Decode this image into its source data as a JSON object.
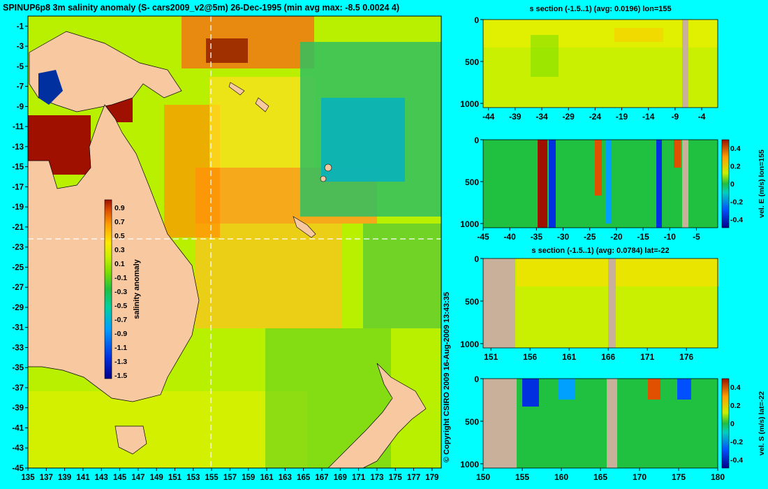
{
  "map": {
    "title": "SPINUP6p8 3m salinity anomaly (S- cars2009_v2@5m) 26-Dec-1995 (min avg max: -8.5 0.0024 4)",
    "copyright": "© Copyright CSIRO 2009  16-Aug-2009 13:43:35",
    "colorbar_label": "salinity anomaly",
    "colorbar_ticks": [
      "0.9",
      "0.7",
      "0.5",
      "0.3",
      "0.1",
      "-0.1",
      "-0.3",
      "-0.5",
      "-0.7",
      "-0.9",
      "-1.1",
      "-1.3",
      "-1.5"
    ]
  },
  "colors": {
    "background": "#00ffff",
    "land": "#f8c8a0",
    "section_land": "#c8b09a",
    "scale": [
      "#00008a",
      "#0030e0",
      "#00a0ff",
      "#00d0a0",
      "#20c040",
      "#80e000",
      "#c8f000",
      "#ffe800",
      "#ffa000",
      "#e05000",
      "#a01000"
    ]
  },
  "chart_data": [
    {
      "type": "heatmap",
      "title": "SPINUP6p8 3m salinity anomaly (S- cars2009_v2@5m) 26-Dec-1995 (min avg max: -8.5 0.0024 4)",
      "x_ticks": [
        135,
        137,
        139,
        141,
        143,
        145,
        147,
        149,
        151,
        153,
        155,
        157,
        159,
        161,
        163,
        165,
        167,
        169,
        171,
        173,
        175,
        177,
        179
      ],
      "y_ticks": [
        -1,
        -3,
        -5,
        -7,
        -9,
        -11,
        -13,
        -15,
        -17,
        -19,
        -21,
        -23,
        -25,
        -27,
        -29,
        -31,
        -33,
        -35,
        -37,
        -39,
        -41,
        -43,
        -45
      ],
      "xlim": [
        135,
        180
      ],
      "ylim": [
        -45,
        0
      ],
      "colorbar": {
        "label": "salinity anomaly",
        "range": [
          -1.5,
          0.9
        ]
      },
      "crosshair": {
        "lon": 155,
        "lat": -22
      }
    },
    {
      "type": "heatmap",
      "title": "s section (-1.5..1) (avg: 0.0196) lon=155",
      "x_ticks": [
        -44,
        -39,
        -34,
        -29,
        -24,
        -19,
        -14,
        -9,
        -4
      ],
      "y_ticks": [
        0,
        500,
        1000
      ],
      "xlim": [
        -45,
        -1
      ],
      "ylim": [
        1050,
        0
      ]
    },
    {
      "type": "heatmap",
      "title": "",
      "x_ticks": [
        -45,
        -40,
        -35,
        -30,
        -25,
        -20,
        -15,
        -10,
        -5
      ],
      "y_ticks": [
        0,
        500,
        1000
      ],
      "xlim": [
        -45,
        -1
      ],
      "ylim": [
        1050,
        0
      ],
      "colorbar": {
        "label": "vel. E (m/s) lon=155",
        "ticks": [
          "0.4",
          "0.2",
          "0",
          "-0.2",
          "-0.4"
        ]
      }
    },
    {
      "type": "heatmap",
      "title": "s section (-1.5..1) (avg: 0.0784) lat=-22",
      "x_ticks": [
        151,
        156,
        161,
        166,
        171,
        176
      ],
      "y_ticks": [
        0,
        500,
        1000
      ],
      "xlim": [
        150,
        180
      ],
      "ylim": [
        1050,
        0
      ]
    },
    {
      "type": "heatmap",
      "title": "",
      "x_ticks": [
        150,
        155,
        160,
        165,
        170,
        175,
        180
      ],
      "y_ticks": [
        0,
        500,
        1000
      ],
      "xlim": [
        150,
        180
      ],
      "ylim": [
        1050,
        0
      ],
      "colorbar": {
        "label": "vel. S (m/s) lat=-22",
        "ticks": [
          "0.4",
          "0.2",
          "0",
          "-0.2",
          "-0.4"
        ]
      }
    }
  ]
}
